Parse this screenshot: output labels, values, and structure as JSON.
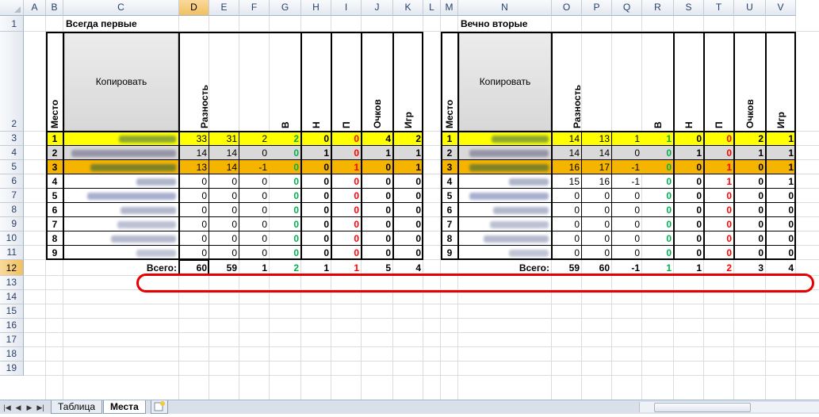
{
  "columns": [
    "A",
    "B",
    "C",
    "D",
    "E",
    "F",
    "G",
    "H",
    "I",
    "J",
    "K",
    "L",
    "M",
    "N",
    "O",
    "P",
    "Q",
    "R",
    "S",
    "T",
    "U",
    "V"
  ],
  "selected_column": "D",
  "rows": [
    "1",
    "2",
    "3",
    "4",
    "5",
    "6",
    "7",
    "8",
    "9",
    "10",
    "11",
    "12",
    "13",
    "14",
    "15",
    "16",
    "17",
    "18",
    "19"
  ],
  "selected_row": "12",
  "left_table": {
    "title": "Всегда первые",
    "copy_button": "Копировать",
    "headers": {
      "place": "Место",
      "diff": "Разность",
      "w": "В",
      "d": "Н",
      "l": "П",
      "points": "Очков",
      "games": "Игр"
    },
    "rows": [
      {
        "place": "1",
        "d": "33",
        "e": "31",
        "f": "2",
        "g": "2",
        "h": "0",
        "i": "0",
        "j": "4",
        "k": "2"
      },
      {
        "place": "2",
        "d": "14",
        "e": "14",
        "f": "0",
        "g": "0",
        "h": "1",
        "i": "0",
        "j": "1",
        "k": "1"
      },
      {
        "place": "3",
        "d": "13",
        "e": "14",
        "f": "-1",
        "g": "0",
        "h": "0",
        "i": "1",
        "j": "0",
        "k": "1"
      },
      {
        "place": "4",
        "d": "0",
        "e": "0",
        "f": "0",
        "g": "0",
        "h": "0",
        "i": "0",
        "j": "0",
        "k": "0"
      },
      {
        "place": "5",
        "d": "0",
        "e": "0",
        "f": "0",
        "g": "0",
        "h": "0",
        "i": "0",
        "j": "0",
        "k": "0"
      },
      {
        "place": "6",
        "d": "0",
        "e": "0",
        "f": "0",
        "g": "0",
        "h": "0",
        "i": "0",
        "j": "0",
        "k": "0"
      },
      {
        "place": "7",
        "d": "0",
        "e": "0",
        "f": "0",
        "g": "0",
        "h": "0",
        "i": "0",
        "j": "0",
        "k": "0"
      },
      {
        "place": "8",
        "d": "0",
        "e": "0",
        "f": "0",
        "g": "0",
        "h": "0",
        "i": "0",
        "j": "0",
        "k": "0"
      },
      {
        "place": "9",
        "d": "0",
        "e": "0",
        "f": "0",
        "g": "0",
        "h": "0",
        "i": "0",
        "j": "0",
        "k": "0"
      }
    ],
    "total": {
      "label": "Всего:",
      "d": "60",
      "e": "59",
      "f": "1",
      "g": "2",
      "h": "1",
      "i": "1",
      "j": "5",
      "k": "4"
    }
  },
  "right_table": {
    "title": "Вечно вторые",
    "copy_button": "Копировать",
    "headers": {
      "place": "Место",
      "diff": "Разность",
      "w": "В",
      "d": "Н",
      "l": "П",
      "points": "Очков",
      "games": "Игр"
    },
    "rows": [
      {
        "place": "1",
        "d": "14",
        "e": "13",
        "f": "1",
        "g": "1",
        "h": "0",
        "i": "0",
        "j": "2",
        "k": "1"
      },
      {
        "place": "2",
        "d": "14",
        "e": "14",
        "f": "0",
        "g": "0",
        "h": "1",
        "i": "0",
        "j": "1",
        "k": "1"
      },
      {
        "place": "3",
        "d": "16",
        "e": "17",
        "f": "-1",
        "g": "0",
        "h": "0",
        "i": "1",
        "j": "0",
        "k": "1"
      },
      {
        "place": "4",
        "d": "15",
        "e": "16",
        "f": "-1",
        "g": "0",
        "h": "0",
        "i": "1",
        "j": "0",
        "k": "1"
      },
      {
        "place": "5",
        "d": "0",
        "e": "0",
        "f": "0",
        "g": "0",
        "h": "0",
        "i": "0",
        "j": "0",
        "k": "0"
      },
      {
        "place": "6",
        "d": "0",
        "e": "0",
        "f": "0",
        "g": "0",
        "h": "0",
        "i": "0",
        "j": "0",
        "k": "0"
      },
      {
        "place": "7",
        "d": "0",
        "e": "0",
        "f": "0",
        "g": "0",
        "h": "0",
        "i": "0",
        "j": "0",
        "k": "0"
      },
      {
        "place": "8",
        "d": "0",
        "e": "0",
        "f": "0",
        "g": "0",
        "h": "0",
        "i": "0",
        "j": "0",
        "k": "0"
      },
      {
        "place": "9",
        "d": "0",
        "e": "0",
        "f": "0",
        "g": "0",
        "h": "0",
        "i": "0",
        "j": "0",
        "k": "0"
      }
    ],
    "total": {
      "label": "Всего:",
      "d": "59",
      "e": "60",
      "f": "-1",
      "g": "1",
      "h": "1",
      "i": "2",
      "j": "3",
      "k": "4"
    }
  },
  "sheet_tabs": {
    "tab1": "Таблица",
    "tab2": "Места"
  },
  "colors": {
    "first": "#ffff00",
    "second": "#d9d9d9",
    "third": "#f4b400",
    "win": "#00b050",
    "loss": "#ff0000",
    "highlight_oval": "#e60000"
  }
}
